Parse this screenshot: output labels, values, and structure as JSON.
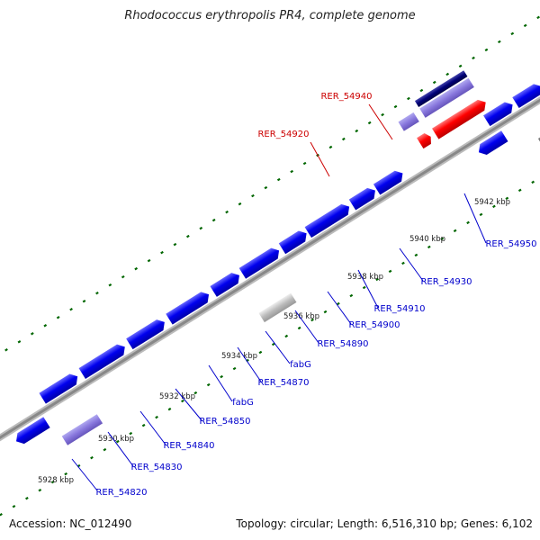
{
  "title": "Rhodococcus erythropolis PR4, complete genome",
  "footer": {
    "accession": "Accession: NC_012490",
    "summary": "Topology: circular; Length: 6,516,310 bp; Genes: 6,102"
  },
  "colors": {
    "gene_blue": "#0000ee",
    "gene_red": "#ff0000",
    "gene_lavender": "#8877dd",
    "gene_navy": "#000077",
    "gene_gray": "#bbbbbb",
    "gene_darkgray": "#555555",
    "gene_teal": "#33cccc",
    "backbone": "#999999",
    "tick_green": "#006600",
    "label_blue": "#0000cc",
    "label_red": "#cc0000"
  },
  "scale_labels": [
    "5928 kbp",
    "5930 kbp",
    "5932 kbp",
    "5934 kbp",
    "5936 kbp",
    "5938 kbp",
    "5940 kbp",
    "5942 kbp"
  ],
  "gene_labels": [
    {
      "text": "RER_54820",
      "color": "blue"
    },
    {
      "text": "RER_54830",
      "color": "blue"
    },
    {
      "text": "RER_54840",
      "color": "blue"
    },
    {
      "text": "RER_54850",
      "color": "blue"
    },
    {
      "text": "fabG",
      "color": "blue"
    },
    {
      "text": "RER_54870",
      "color": "blue"
    },
    {
      "text": "fabG",
      "color": "blue"
    },
    {
      "text": "RER_54890",
      "color": "blue"
    },
    {
      "text": "RER_54900",
      "color": "blue"
    },
    {
      "text": "RER_54910",
      "color": "blue"
    },
    {
      "text": "RER_54930",
      "color": "blue"
    },
    {
      "text": "RER_54950",
      "color": "blue"
    },
    {
      "text": "RER_54920",
      "color": "red"
    },
    {
      "text": "RER_54940",
      "color": "red"
    }
  ]
}
